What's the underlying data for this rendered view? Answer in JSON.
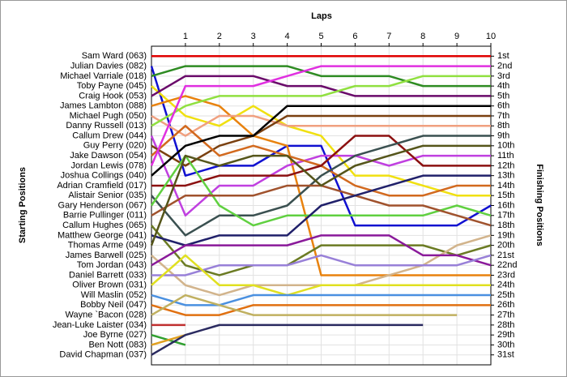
{
  "chart_data": {
    "type": "line",
    "x_label": "Laps",
    "y_label": "Starting Positions",
    "y2_label": "Finishing Positions",
    "x": [
      0,
      1,
      2,
      3,
      4,
      5,
      6,
      7,
      8,
      9,
      10
    ],
    "xlim": [
      0,
      10
    ],
    "xticks": [
      1,
      2,
      3,
      4,
      5,
      6,
      7,
      8,
      9,
      10
    ],
    "ylim": [
      0,
      32
    ],
    "y2lim": [
      0,
      32
    ],
    "invert_y": true,
    "grid": true,
    "yticks": [
      {
        "value": 1,
        "label": "Sam Ward (063)"
      },
      {
        "value": 2,
        "label": "Julian Davies (082)"
      },
      {
        "value": 3,
        "label": "Michael Varriale (018)"
      },
      {
        "value": 4,
        "label": "Toby Payne (045)"
      },
      {
        "value": 5,
        "label": "Craig Hook (053)"
      },
      {
        "value": 6,
        "label": "James Lambton (088)"
      },
      {
        "value": 7,
        "label": "Michael Pugh (050)"
      },
      {
        "value": 8,
        "label": "Danny Russell (013)"
      },
      {
        "value": 9,
        "label": "Callum Drew (044)"
      },
      {
        "value": 10,
        "label": "Guy Perry (020)"
      },
      {
        "value": 11,
        "label": "Jake Dawson (054)"
      },
      {
        "value": 12,
        "label": "Jordan Lewis (078)"
      },
      {
        "value": 13,
        "label": "Joshua Collings (040)"
      },
      {
        "value": 14,
        "label": "Adrian Cramfield (017)"
      },
      {
        "value": 15,
        "label": "Alistair Senior (035)"
      },
      {
        "value": 16,
        "label": "Gary Henderson (067)"
      },
      {
        "value": 17,
        "label": "Barrie Pullinger (011)"
      },
      {
        "value": 18,
        "label": "Callum Hughes (065)"
      },
      {
        "value": 19,
        "label": "Matthew George (041)"
      },
      {
        "value": 20,
        "label": "Thomas Arme (049)"
      },
      {
        "value": 21,
        "label": "James Barwell (025)"
      },
      {
        "value": 22,
        "label": "Tom Jordan (043)"
      },
      {
        "value": 23,
        "label": "Daniel Barrett (033)"
      },
      {
        "value": 24,
        "label": "Oliver Brown (031)"
      },
      {
        "value": 25,
        "label": "Will Maslin (052)"
      },
      {
        "value": 26,
        "label": "Bobby Neil (047)"
      },
      {
        "value": 27,
        "label": "Wayne `Bacon (028)"
      },
      {
        "value": 28,
        "label": "Jean-Luke Laister (034)"
      },
      {
        "value": 29,
        "label": "Joe Byrne (027)"
      },
      {
        "value": 30,
        "label": "Ben Nott (083)"
      },
      {
        "value": 31,
        "label": "David Chapman (037)"
      }
    ],
    "y2ticks": [
      {
        "value": 1,
        "label": "1st"
      },
      {
        "value": 2,
        "label": "2nd"
      },
      {
        "value": 3,
        "label": "3rd"
      },
      {
        "value": 4,
        "label": "4th"
      },
      {
        "value": 5,
        "label": "5th"
      },
      {
        "value": 6,
        "label": "6th"
      },
      {
        "value": 7,
        "label": "7th"
      },
      {
        "value": 8,
        "label": "8th"
      },
      {
        "value": 9,
        "label": "9th"
      },
      {
        "value": 10,
        "label": "10th"
      },
      {
        "value": 11,
        "label": "11th"
      },
      {
        "value": 12,
        "label": "12th"
      },
      {
        "value": 13,
        "label": "13th"
      },
      {
        "value": 14,
        "label": "14th"
      },
      {
        "value": 15,
        "label": "15th"
      },
      {
        "value": 16,
        "label": "16th"
      },
      {
        "value": 17,
        "label": "17th"
      },
      {
        "value": 18,
        "label": "18th"
      },
      {
        "value": 19,
        "label": "19th"
      },
      {
        "value": 20,
        "label": "20th"
      },
      {
        "value": 21,
        "label": "21st"
      },
      {
        "value": 22,
        "label": "22nd"
      },
      {
        "value": 23,
        "label": "23rd"
      },
      {
        "value": 24,
        "label": "24th"
      },
      {
        "value": 25,
        "label": "25th"
      },
      {
        "value": 26,
        "label": "26th"
      },
      {
        "value": 27,
        "label": "27th"
      },
      {
        "value": 28,
        "label": "28th"
      },
      {
        "value": 29,
        "label": "29th"
      },
      {
        "value": 30,
        "label": "30th"
      },
      {
        "value": 31,
        "label": "31st"
      }
    ],
    "series": [
      {
        "color": "#e00000",
        "values": [
          1,
          1,
          1,
          1,
          1,
          1,
          1,
          1,
          1,
          1,
          1
        ]
      },
      {
        "color": "#1010d0",
        "values": [
          2,
          13,
          12,
          12,
          10,
          10,
          18,
          18,
          18,
          18,
          16
        ]
      },
      {
        "color": "#2e8b22",
        "values": [
          3,
          2,
          2,
          2,
          2,
          3,
          3,
          3,
          4,
          4,
          4
        ]
      },
      {
        "color": "#f0e010",
        "values": [
          4,
          7,
          8,
          6,
          8,
          9,
          13,
          13,
          14,
          15,
          15
        ]
      },
      {
        "color": "#6a0a6a",
        "values": [
          5,
          3,
          3,
          3,
          4,
          4,
          5,
          5,
          5,
          5,
          5
        ]
      },
      {
        "color": "#e8820e",
        "values": [
          6,
          5,
          6,
          9,
          10,
          23,
          23,
          23,
          23,
          23,
          23
        ]
      },
      {
        "color": "#f0a080",
        "values": [
          7,
          9,
          7,
          7,
          8,
          8,
          8,
          8,
          8,
          8,
          8
        ]
      },
      {
        "color": "#90e040",
        "values": [
          8,
          6,
          5,
          5,
          5,
          5,
          4,
          4,
          3,
          3,
          3
        ]
      },
      {
        "color": "#c040e0",
        "values": [
          9,
          17,
          14,
          14,
          12,
          11,
          11,
          12,
          11,
          11,
          11
        ]
      },
      {
        "color": "#7a4010",
        "values": [
          10,
          12,
          10,
          9,
          7,
          7,
          7,
          7,
          7,
          7,
          7
        ]
      },
      {
        "color": "#d2691e",
        "values": [
          11,
          8,
          11,
          10,
          11,
          12,
          14,
          15,
          15,
          14,
          14
        ]
      },
      {
        "color": "#e030e0",
        "values": [
          12,
          4,
          4,
          4,
          3,
          2,
          2,
          2,
          2,
          2,
          2
        ]
      },
      {
        "color": "#000000",
        "values": [
          13,
          10,
          9,
          9,
          6,
          6,
          6,
          6,
          6,
          6,
          6
        ]
      },
      {
        "color": "#8b1010",
        "values": [
          14,
          14,
          13,
          13,
          13,
          12,
          9,
          9,
          12,
          12,
          12
        ]
      },
      {
        "color": "#3a5050",
        "values": [
          15,
          19,
          17,
          17,
          16,
          13,
          11,
          10,
          9,
          9,
          9
        ]
      },
      {
        "color": "#60d040",
        "values": [
          16,
          11,
          16,
          18,
          17,
          17,
          17,
          17,
          17,
          16,
          17
        ]
      },
      {
        "color": "#a0522d",
        "values": [
          17,
          15,
          15,
          15,
          14,
          14,
          15,
          16,
          16,
          17,
          18
        ]
      },
      {
        "color": "#6b7b23",
        "values": [
          18,
          22,
          23,
          22,
          22,
          20,
          20,
          20,
          20,
          21,
          20
        ]
      },
      {
        "color": "#20206a",
        "values": [
          19,
          20,
          19,
          19,
          19,
          16,
          15,
          14,
          13,
          13,
          13
        ]
      },
      {
        "color": "#55551a",
        "values": [
          20,
          11,
          12,
          11,
          11,
          14,
          12,
          11,
          10,
          10,
          10
        ]
      },
      {
        "color": "#d2b48c",
        "values": [
          21,
          24,
          25,
          24,
          24,
          24,
          24,
          23,
          22,
          20,
          19
        ]
      },
      {
        "color": "#8a1a9a",
        "values": [
          22,
          20,
          20,
          20,
          20,
          19,
          19,
          19,
          21,
          21,
          22
        ]
      },
      {
        "color": "#9880d8",
        "values": [
          23,
          23,
          22,
          22,
          22,
          21,
          22,
          22,
          22,
          22,
          21
        ]
      },
      {
        "color": "#e0e020",
        "values": [
          24,
          21,
          24,
          24,
          25,
          24,
          24,
          24,
          24,
          24,
          24
        ]
      },
      {
        "color": "#4a90e0",
        "values": [
          25,
          26,
          26,
          25,
          25,
          25,
          25,
          25,
          25,
          25,
          25
        ]
      },
      {
        "color": "#e07010",
        "values": [
          26,
          27,
          27,
          26,
          26,
          26,
          26,
          26,
          26,
          26,
          26
        ]
      },
      {
        "color": "#c0b060",
        "values": [
          27,
          25,
          26,
          27,
          27,
          27,
          27,
          27,
          27,
          27,
          null
        ]
      },
      {
        "color": "#c03030",
        "values": [
          28,
          28,
          null,
          null,
          null,
          null,
          null,
          null,
          null,
          null,
          null
        ]
      },
      {
        "color": "#30a030",
        "values": [
          29,
          30,
          null,
          null,
          null,
          null,
          null,
          null,
          null,
          null,
          null
        ]
      },
      {
        "color": "#e0a020",
        "values": [
          30,
          29,
          null,
          null,
          null,
          null,
          null,
          null,
          null,
          null,
          null
        ]
      },
      {
        "color": "#2a2a60",
        "values": [
          31,
          29,
          28,
          28,
          28,
          28,
          28,
          28,
          28,
          null,
          null
        ]
      }
    ]
  }
}
